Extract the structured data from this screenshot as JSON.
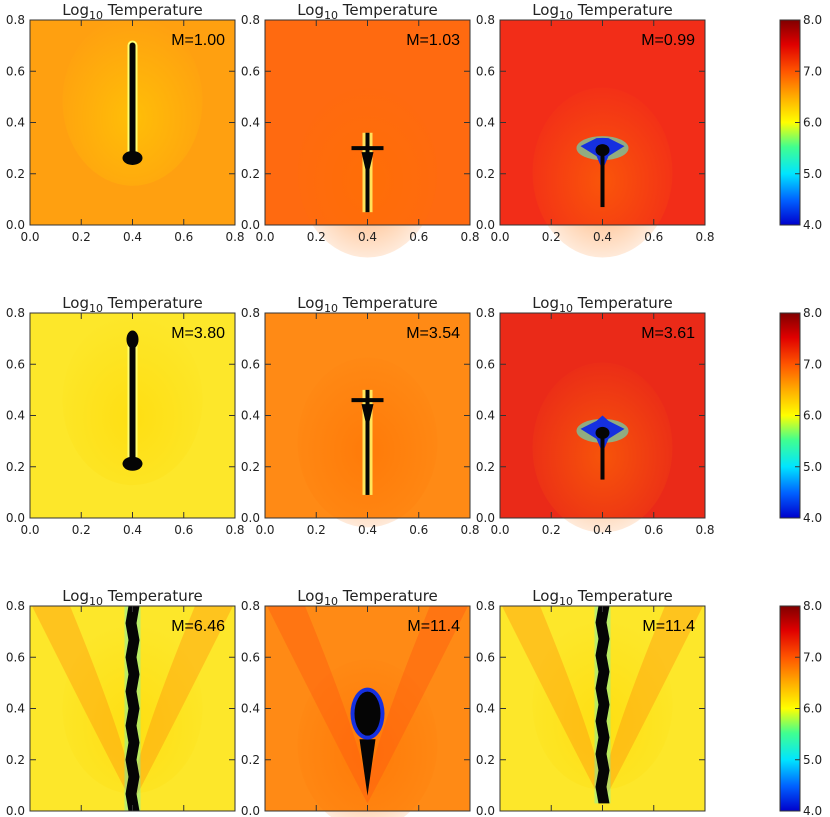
{
  "figure": {
    "title_main": "Log",
    "title_sub": "10",
    "title_rest": " Temperature"
  },
  "chart_data": {
    "type": "heatmap",
    "quantity": "Log10 Temperature",
    "x_range": [
      0.0,
      0.8
    ],
    "y_range": [
      0.0,
      0.8
    ],
    "x_ticks": [
      "0.0",
      "0.2",
      "0.4",
      "0.6",
      "0.8"
    ],
    "y_ticks": [
      "0.0",
      "0.2",
      "0.4",
      "0.6",
      "0.8"
    ],
    "colorbar": {
      "range": [
        4.0,
        8.0
      ],
      "ticks": [
        "4.0",
        "5.0",
        "6.0",
        "7.0",
        "8.0"
      ],
      "colors": [
        "#0000cc",
        "#00e5ff",
        "#ffff00",
        "#ff5500",
        "#800000"
      ]
    },
    "panels": [
      {
        "row": 0,
        "col": 0,
        "M": "M=1.00",
        "background": "#ffa010",
        "shape": "rod",
        "top": 0.72,
        "bottom": 0.25,
        "bulb": "bottom"
      },
      {
        "row": 0,
        "col": 1,
        "M": "M=1.03",
        "background": "#ff6a10",
        "shape": "cross",
        "top": 0.36,
        "bottom": 0.05,
        "arms_y": 0.3
      },
      {
        "row": 0,
        "col": 2,
        "M": "M=0.99",
        "background": "#f22d18",
        "shape": "flower",
        "top": 0.34,
        "bottom": 0.07,
        "arms_y": 0.3
      },
      {
        "row": 1,
        "col": 0,
        "M": "M=3.80",
        "background": "#fde72a",
        "shape": "rod",
        "top": 0.72,
        "bottom": 0.2,
        "bulb": "bottom"
      },
      {
        "row": 1,
        "col": 1,
        "M": "M=3.54",
        "background": "#ff8a15",
        "shape": "cross",
        "top": 0.5,
        "bottom": 0.09,
        "arms_y": 0.46
      },
      {
        "row": 1,
        "col": 2,
        "M": "M=3.61",
        "background": "#ea2a18",
        "shape": "flower",
        "top": 0.4,
        "bottom": 0.15,
        "arms_y": 0.34
      },
      {
        "row": 2,
        "col": 0,
        "M": "M=6.46",
        "background": "#fde72a",
        "shape": "column",
        "top": 0.8,
        "bottom": 0.0
      },
      {
        "row": 2,
        "col": 1,
        "M": "M=11.4",
        "background": "#ff8a15",
        "shape": "blob",
        "top": 0.46,
        "bottom": 0.06
      },
      {
        "row": 2,
        "col": 2,
        "M": "M=11.4",
        "background": "#fde72a",
        "shape": "column",
        "top": 0.8,
        "bottom": 0.03
      }
    ]
  }
}
